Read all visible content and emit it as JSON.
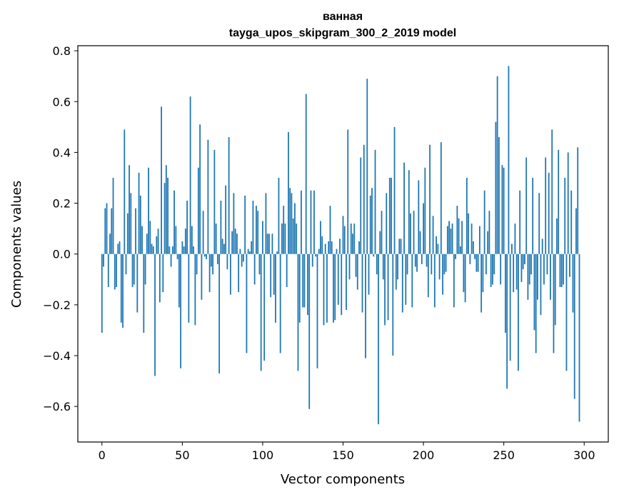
{
  "chart_data": {
    "type": "bar",
    "title": "ванная",
    "subtitle": "tayga_upos_skipgram_300_2_2019 model",
    "xlabel": "Vector components",
    "ylabel": "Components values",
    "xlim": [
      -15,
      315
    ],
    "ylim": [
      -0.74,
      0.82
    ],
    "xticks": [
      0,
      50,
      100,
      150,
      200,
      250,
      300
    ],
    "yticks": [
      0.8,
      0.6,
      0.4,
      0.2,
      0.0,
      -0.2,
      -0.4,
      -0.6
    ],
    "ytick_labels": [
      "0.8",
      "0.6",
      "0.4",
      "0.2",
      "0.0",
      "−0.2",
      "−0.4",
      "−0.6"
    ],
    "bar_color": "#1f77b4",
    "grid": false,
    "values": [
      -0.31,
      -0.05,
      0.18,
      0.2,
      -0.13,
      0.08,
      0.18,
      0.3,
      -0.14,
      -0.13,
      0.04,
      0.05,
      -0.27,
      -0.29,
      0.49,
      -0.08,
      0.16,
      0.35,
      0.24,
      -0.13,
      -0.12,
      0.18,
      -0.23,
      0.32,
      0.23,
      0.11,
      -0.31,
      -0.12,
      0.08,
      0.34,
      0.13,
      0.04,
      0.03,
      -0.48,
      0.07,
      0.1,
      -0.19,
      0.58,
      -0.15,
      0.28,
      0.35,
      0.3,
      0.03,
      -0.05,
      0.03,
      0.25,
      0.11,
      -0.02,
      -0.21,
      -0.45,
      0.05,
      0.03,
      0.1,
      0.21,
      -0.27,
      0.62,
      0.11,
      0.03,
      -0.28,
      -0.08,
      0.34,
      0.51,
      -0.18,
      0.17,
      -0.01,
      -0.02,
      0.45,
      -0.15,
      -0.05,
      -0.08,
      0.41,
      0.12,
      -0.04,
      -0.47,
      0.21,
      0.06,
      0.04,
      0.27,
      -0.06,
      0.46,
      -0.16,
      0.09,
      0.24,
      0.1,
      0.08,
      -0.15,
      0.02,
      -0.05,
      -0.03,
      0.23,
      -0.39,
      0.02,
      0.01,
      0.05,
      0.21,
      -0.12,
      0.19,
      0.17,
      -0.08,
      -0.46,
      0.13,
      -0.42,
      0.24,
      0.08,
      0.08,
      -0.17,
      0.08,
      -0.16,
      -0.27,
      0.01,
      0.3,
      -0.39,
      0.12,
      0.19,
      0.12,
      -0.13,
      0.48,
      0.26,
      0.24,
      0.14,
      0.2,
      0.12,
      -0.46,
      -0.27,
      0.25,
      -0.21,
      -0.21,
      0.63,
      -0.24,
      -0.61,
      0.25,
      -0.05,
      0.25,
      -0.01,
      -0.45,
      0.02,
      0.13,
      0.07,
      -0.28,
      0.04,
      -0.27,
      0.05,
      0.19,
      0.05,
      -0.27,
      -0.26,
      0.02,
      -0.2,
      0.06,
      -0.24,
      0.15,
      0.11,
      -0.22,
      0.49,
      -0.1,
      0.12,
      0.08,
      0.12,
      -0.09,
      -0.14,
      0.05,
      0.38,
      -0.23,
      0.43,
      -0.41,
      0.69,
      -0.16,
      0.23,
      0.26,
      -0.01,
      0.41,
      -0.08,
      -0.67,
      0.09,
      0.17,
      -0.1,
      -0.28,
      0.24,
      -0.26,
      0.3,
      0.3,
      -0.4,
      0.5,
      -0.14,
      -0.1,
      0.06,
      0.06,
      -0.23,
      0.36,
      -0.2,
      -0.08,
      0.33,
      0.16,
      -0.21,
      0.17,
      -0.05,
      -0.07,
      0.29,
      0.09,
      -0.04,
      0.2,
      0.34,
      -0.05,
      -0.17,
      0.43,
      -0.08,
      0.15,
      -0.21,
      0.07,
      0.04,
      -0.1,
      0.44,
      -0.16,
      -0.08,
      -0.07,
      0.11,
      0.13,
      0.1,
      0.12,
      -0.21,
      -0.02,
      0.19,
      0.14,
      0.03,
      0.13,
      -0.15,
      -0.19,
      0.3,
      0.16,
      -0.04,
      0.12,
      0.05,
      -0.02,
      -0.07,
      -0.07,
      0.11,
      -0.23,
      -0.15,
      0.25,
      -0.08,
      0.09,
      0.17,
      -0.13,
      -0.12,
      -0.08,
      0.52,
      0.7,
      0.46,
      -0.12,
      0.35,
      0.34,
      -0.31,
      -0.53,
      0.74,
      -0.42,
      0.04,
      -0.15,
      0.12,
      -0.14,
      -0.46,
      0.25,
      -0.11,
      -0.06,
      -0.04,
      0.38,
      -0.18,
      -0.12,
      -0.08,
      0.3,
      -0.3,
      -0.39,
      -0.18,
      0.24,
      -0.24,
      0.06,
      -0.12,
      0.38,
      -0.08,
      0.32,
      -0.18,
      0.49,
      -0.39,
      -0.28,
      0.14,
      0.41,
      -0.13,
      -0.13,
      -0.12,
      0.3,
      -0.46,
      0.4,
      -0.09,
      0.25,
      -0.23,
      -0.57,
      0.18,
      0.42,
      -0.66
    ]
  }
}
